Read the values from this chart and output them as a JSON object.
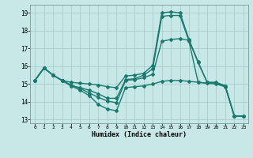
{
  "xlabel": "Humidex (Indice chaleur)",
  "xlim": [
    -0.5,
    23.5
  ],
  "ylim": [
    12.8,
    19.45
  ],
  "yticks": [
    13,
    14,
    15,
    16,
    17,
    18,
    19
  ],
  "xticks": [
    0,
    1,
    2,
    3,
    4,
    5,
    6,
    7,
    8,
    9,
    10,
    11,
    12,
    13,
    14,
    15,
    16,
    17,
    18,
    19,
    20,
    21,
    22,
    23
  ],
  "background_color": "#c8e8e8",
  "grid_color": "#a8cccc",
  "line_color": "#1a7a6e",
  "line_width": 1.0,
  "marker_size": 2.0,
  "series": [
    [
      15.2,
      15.9,
      15.5,
      15.2,
      14.9,
      14.65,
      14.35,
      13.85,
      13.6,
      13.5,
      14.8,
      14.85,
      14.9,
      15.0,
      15.15,
      15.2,
      15.2,
      15.15,
      15.1,
      15.05,
      15.05,
      14.85,
      13.2,
      13.2
    ],
    [
      15.2,
      15.9,
      15.5,
      15.2,
      14.95,
      14.75,
      14.5,
      14.25,
      14.05,
      13.95,
      15.2,
      15.25,
      15.35,
      15.55,
      17.4,
      17.5,
      17.55,
      17.45,
      16.2,
      15.1,
      15.05,
      14.9,
      13.2,
      13.2
    ],
    [
      15.2,
      15.9,
      15.5,
      15.2,
      14.9,
      14.8,
      14.65,
      14.45,
      14.2,
      14.2,
      15.25,
      15.3,
      15.5,
      15.85,
      18.8,
      18.85,
      18.85,
      17.4,
      15.1,
      15.05,
      15.0,
      14.85,
      13.2,
      13.2
    ],
    [
      15.2,
      15.9,
      15.5,
      15.2,
      15.1,
      15.05,
      15.0,
      14.95,
      14.85,
      14.8,
      15.45,
      15.5,
      15.6,
      16.05,
      19.0,
      19.05,
      19.0,
      17.5,
      16.25,
      15.1,
      15.1,
      14.9,
      13.2,
      13.2
    ]
  ]
}
